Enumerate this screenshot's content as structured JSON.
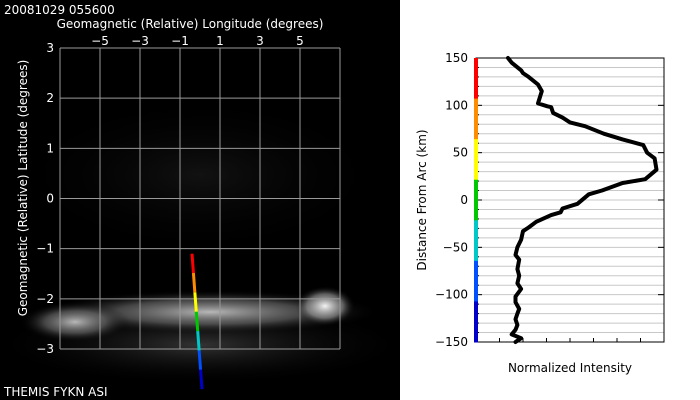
{
  "header": {
    "timestamp": "20081029 055600"
  },
  "footer": {
    "source_label": "THEMIS FYKN ASI"
  },
  "chart_data": [
    {
      "type": "heatmap",
      "title": "",
      "xlabel": "Geomagnetic (Relative) Longitude (degrees)",
      "ylabel": "Geomagnetic (Relative) Latitude (degrees)",
      "xlim": [
        -7,
        7
      ],
      "ylim": [
        -3,
        3
      ],
      "x_ticks": [
        -5,
        -3,
        -1,
        1,
        3,
        5
      ],
      "x_tick_labels": [
        "−5",
        "−3",
        "−1",
        "1",
        "3",
        "5"
      ],
      "y_ticks": [
        3,
        2,
        1,
        0,
        -1,
        -2,
        -3
      ],
      "y_tick_labels": [
        "3",
        "2",
        "1",
        "0",
        "−1",
        "−2",
        "−3"
      ],
      "grid": true,
      "background": "#000000",
      "gridline_color": "#9a9a9a",
      "auroral_arc": {
        "lat_center": -2.2,
        "description_colors": [
          "#5a5a5a",
          "#9a9a9a",
          "#cfcfcf"
        ]
      },
      "transect_line": {
        "start": [
          -0.4,
          -1.1
        ],
        "end": [
          0.1,
          -3.8
        ],
        "colors": [
          "#ff0000",
          "#ff8c00",
          "#ffff00",
          "#00c800",
          "#00c8c8",
          "#0050ff",
          "#0000c8"
        ]
      }
    },
    {
      "type": "line",
      "title": "",
      "xlabel": "Normalized Intensity",
      "ylabel": "Distance From Arc (km)",
      "ylim": [
        -150,
        150
      ],
      "xlim": [
        0,
        1
      ],
      "y_ticks": [
        150,
        100,
        50,
        0,
        -50,
        -100,
        -150
      ],
      "y_tick_labels": [
        "150",
        "100",
        "50",
        "0",
        "−50",
        "−100",
        "−150"
      ],
      "grid": true,
      "line_color": "#000000",
      "color_bar": [
        "#ff0000",
        "#ff8c00",
        "#ffff00",
        "#00c800",
        "#00c8c8",
        "#0050ff",
        "#0000c8"
      ],
      "series": [
        {
          "x": [
            0.17,
            0.19,
            0.24,
            0.25,
            0.28,
            0.33,
            0.35,
            0.33,
            0.38,
            0.4,
            0.41,
            0.46,
            0.5,
            0.58,
            0.68,
            0.78,
            0.89,
            0.9,
            0.91,
            0.95,
            0.96,
            0.9,
            0.78,
            0.67,
            0.6,
            0.54,
            0.46,
            0.45,
            0.4,
            0.32,
            0.28,
            0.25,
            0.24,
            0.22,
            0.21,
            0.23,
            0.22,
            0.23,
            0.22,
            0.24,
            0.21,
            0.21,
            0.23,
            0.22,
            0.21,
            0.22,
            0.21,
            0.19,
            0.24,
            0.21
          ],
          "y": [
            150,
            145,
            137,
            134,
            130,
            122,
            115,
            102,
            99,
            98,
            92,
            87,
            82,
            78,
            70,
            64,
            58,
            54,
            50,
            44,
            32,
            22,
            18,
            10,
            6,
            -4,
            -9,
            -13,
            -16,
            -23,
            -29,
            -33,
            -42,
            -50,
            -58,
            -63,
            -73,
            -80,
            -88,
            -94,
            -102,
            -108,
            -115,
            -120,
            -126,
            -132,
            -137,
            -142,
            -146,
            -150
          ]
        }
      ]
    }
  ]
}
